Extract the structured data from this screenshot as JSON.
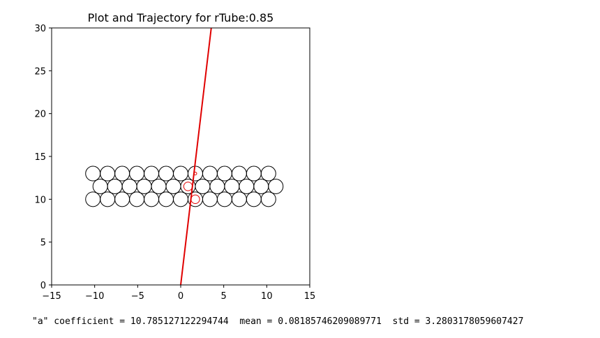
{
  "chart_data": {
    "type": "scatter",
    "title": "Plot and Trajectory for rTube:0.85",
    "xlabel": "",
    "ylabel": "",
    "xlim": [
      -15,
      15
    ],
    "ylim": [
      0,
      30
    ],
    "xticks": [
      "−15",
      "−10",
      "−5",
      "0",
      "5",
      "10",
      "15"
    ],
    "yticks": [
      "0",
      "5",
      "10",
      "15",
      "20",
      "25",
      "30"
    ],
    "circle_radius": 0.85,
    "colors": {
      "tube": "#000000",
      "trajectory": "#e00000"
    },
    "tubes": [
      [
        -10.2,
        10
      ],
      [
        -8.5,
        10
      ],
      [
        -6.8,
        10
      ],
      [
        -5.1,
        10
      ],
      [
        -3.4,
        10
      ],
      [
        -1.7,
        10
      ],
      [
        0,
        10
      ],
      [
        1.7,
        10
      ],
      [
        3.4,
        10
      ],
      [
        5.1,
        10
      ],
      [
        6.8,
        10
      ],
      [
        8.5,
        10
      ],
      [
        10.2,
        10
      ],
      [
        -9.35,
        11.5
      ],
      [
        -7.65,
        11.5
      ],
      [
        -5.95,
        11.5
      ],
      [
        -4.25,
        11.5
      ],
      [
        -2.55,
        11.5
      ],
      [
        -0.85,
        11.5
      ],
      [
        0.85,
        11.5
      ],
      [
        2.55,
        11.5
      ],
      [
        4.25,
        11.5
      ],
      [
        5.95,
        11.5
      ],
      [
        7.65,
        11.5
      ],
      [
        9.35,
        11.5
      ],
      [
        11.05,
        11.5
      ],
      [
        -10.2,
        13
      ],
      [
        -8.5,
        13
      ],
      [
        -6.8,
        13
      ],
      [
        -5.1,
        13
      ],
      [
        -3.4,
        13
      ],
      [
        -1.7,
        13
      ],
      [
        0,
        13
      ],
      [
        1.7,
        13
      ],
      [
        3.4,
        13
      ],
      [
        5.1,
        13
      ],
      [
        6.8,
        13
      ],
      [
        8.5,
        13
      ],
      [
        10.2,
        13
      ]
    ],
    "trajectory": {
      "x": [
        0,
        3.55
      ],
      "y": [
        0,
        30
      ]
    },
    "hit_markers": [
      {
        "x": 1.7,
        "y": 10,
        "r": 0.5
      },
      {
        "x": 0.85,
        "y": 11.5,
        "r": 0.5
      },
      {
        "x": 1.7,
        "y": 13,
        "r": 0.12
      }
    ]
  },
  "footer": {
    "stats": "\"a\" coefficient = 10.785127122294744  mean = 0.08185746209089771  std = 3.2803178059607427"
  }
}
